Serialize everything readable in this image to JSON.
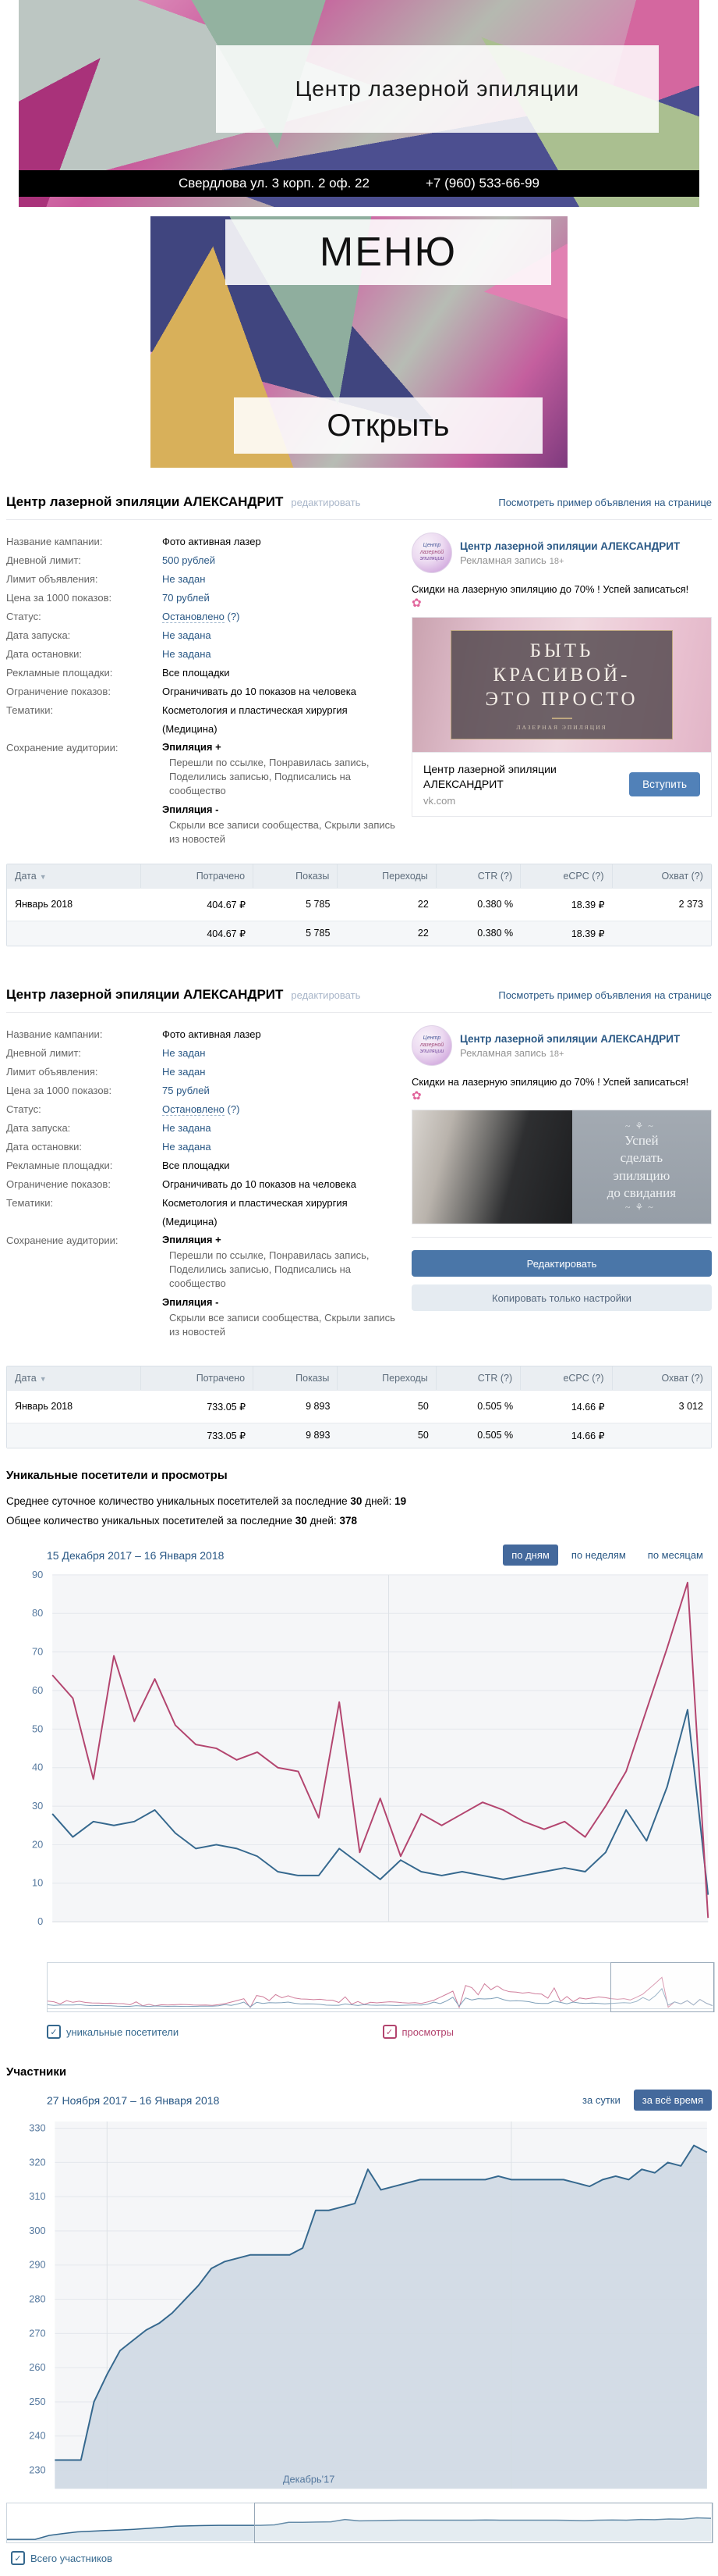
{
  "banner": {
    "title": "Центр лазерной эпиляции",
    "address": "Свердлова ул. 3 корп. 2 оф. 22",
    "phone": "+7 (960) 533-66-99"
  },
  "menu": {
    "title": "МЕНЮ",
    "open_label": "Открыть"
  },
  "campaigns": [
    {
      "title": "Центр лазерной эпиляции АЛЕКСАНДРИТ",
      "edit_label": "редактировать",
      "preview_link": "Посмотреть пример объявления на странице",
      "details": [
        {
          "label": "Название кампании:",
          "value": "Фото активная лазер",
          "style": "plain"
        },
        {
          "label": "Дневной лимит:",
          "value": "500 рублей",
          "style": "link"
        },
        {
          "label": "Лимит объявления:",
          "value": "Не задан",
          "style": "link"
        },
        {
          "label": "Цена за 1000 показов:",
          "value": "70 рублей",
          "style": "link"
        },
        {
          "label": "Статус:",
          "value": "Остановлено",
          "suffix": " (?)",
          "style": "status"
        },
        {
          "label": "Дата запуска:",
          "value": "Не задана",
          "style": "link"
        },
        {
          "label": "Дата остановки:",
          "value": "Не задана",
          "style": "link"
        },
        {
          "label": "Рекламные площадки:",
          "value": "Все площадки",
          "style": "plain"
        },
        {
          "label": "Ограничение показов:",
          "value": "Ограничивать до 10 показов на человека",
          "style": "plain"
        },
        {
          "label": "Тематики:",
          "value": "Косметология и пластическая хирургия (Медицина)",
          "style": "plain",
          "wrap": true
        }
      ],
      "audience": {
        "label": "Сохранение аудитории:",
        "groups": [
          {
            "name": "Эпиляция +",
            "desc": "Перешли по ссылке, Понравилась запись, Поделились записью, Подписались на сообщество"
          },
          {
            "name": "Эпиляция -",
            "desc": "Скрыли все записи сообщества, Скрыли запись из новостей"
          }
        ]
      },
      "ad": {
        "avatar": [
          "Центр",
          "лазерной",
          "эпиляции"
        ],
        "community": "Центр лазерной эпиляции АЛЕКСАНДРИТ",
        "post_type": "Рекламная запись",
        "age": "18+",
        "text": "Скидки на лазерную эпиляцию до 70% ! Успей записаться!",
        "flower": "✿",
        "image_lines": [
          "БЫТЬ",
          "КРАСИВОЙ-",
          "ЭТО ПРОСТО"
        ],
        "image_sub": "ЛАЗЕРНАЯ ЭПИЛЯЦИЯ",
        "card_title": "Центр лазерной эпиляции АЛЕКСАНДРИТ",
        "card_domain": "vk.com",
        "join_label": "Вступить"
      },
      "stats": {
        "headers": [
          "Дата",
          "Потрачено",
          "Показы",
          "Переходы",
          "CTR (?)",
          "eCPC (?)",
          "Охват (?)"
        ],
        "rows": [
          [
            "Январь 2018",
            "404.67 ₽",
            "5 785",
            "22",
            "0.380 %",
            "18.39 ₽",
            "2 373"
          ]
        ],
        "total": [
          "",
          "404.67 ₽",
          "5 785",
          "22",
          "0.380 %",
          "18.39 ₽",
          ""
        ]
      }
    },
    {
      "title": "Центр лазерной эпиляции АЛЕКСАНДРИТ",
      "edit_label": "редактировать",
      "preview_link": "Посмотреть пример объявления на странице",
      "details": [
        {
          "label": "Название кампании:",
          "value": "Фото активная лазер",
          "style": "plain"
        },
        {
          "label": "Дневной лимит:",
          "value": "Не задан",
          "style": "link"
        },
        {
          "label": "Лимит объявления:",
          "value": "Не задан",
          "style": "link"
        },
        {
          "label": "Цена за 1000 показов:",
          "value": "75 рублей",
          "style": "link"
        },
        {
          "label": "Статус:",
          "value": "Остановлено",
          "suffix": " (?)",
          "style": "status"
        },
        {
          "label": "Дата запуска:",
          "value": "Не задана",
          "style": "link"
        },
        {
          "label": "Дата остановки:",
          "value": "Не задана",
          "style": "link"
        },
        {
          "label": "Рекламные площадки:",
          "value": "Все площадки",
          "style": "plain"
        },
        {
          "label": "Ограничение показов:",
          "value": "Ограничивать до 10 показов на человека",
          "style": "plain"
        },
        {
          "label": "Тематики:",
          "value": "Косметология и пластическая хирургия (Медицина)",
          "style": "plain",
          "wrap": true
        }
      ],
      "audience": {
        "label": "Сохранение аудитории:",
        "groups": [
          {
            "name": "Эпиляция +",
            "desc": "Перешли по ссылке, Понравилась запись, Поделились записью, Подписались на сообщество"
          },
          {
            "name": "Эпиляция -",
            "desc": "Скрыли все записи сообщества, Скрыли запись из новостей"
          }
        ]
      },
      "ad": {
        "avatar": [
          "Центр",
          "лазерной",
          "эпиляции"
        ],
        "community": "Центр лазерной эпиляции АЛЕКСАНДРИТ",
        "post_type": "Рекламная запись",
        "age": "18+",
        "text": "Скидки на лазерную эпиляцию до 70% ! Успей записаться!",
        "flower": "✿",
        "image_lines": [
          "Успей",
          "сделать",
          "эпиляцию",
          "до свидания"
        ],
        "buttons": [
          "Редактировать",
          "Копировать только настройки"
        ]
      },
      "stats": {
        "headers": [
          "Дата",
          "Потрачено",
          "Показы",
          "Переходы",
          "CTR (?)",
          "eCPC (?)",
          "Охват (?)"
        ],
        "rows": [
          [
            "Январь 2018",
            "733.05 ₽",
            "9 893",
            "50",
            "0.505 %",
            "14.66 ₽",
            "3 012"
          ]
        ],
        "total": [
          "",
          "733.05 ₽",
          "9 893",
          "50",
          "0.505 %",
          "14.66 ₽",
          ""
        ]
      }
    }
  ],
  "visitors": {
    "heading": "Уникальные посетители и просмотры",
    "avg": {
      "prefix": "Среднее суточное количество уникальных посетителей за последние ",
      "days": "30",
      "mid": " дней: ",
      "value": "19"
    },
    "total": {
      "prefix": "Общее количество уникальных посетителей за последние ",
      "days": "30",
      "mid": " дней: ",
      "value": "378"
    },
    "date_range": "15 Декабря 2017 – 16 Января 2018",
    "tabs": {
      "items": [
        "по дням",
        "по неделям",
        "по месяцам"
      ],
      "active": 0
    },
    "legend": [
      {
        "label": "уникальные посетители",
        "color": "#35688e"
      },
      {
        "label": "просмотры",
        "color": "#b3456f"
      }
    ]
  },
  "members": {
    "heading": "Участники",
    "date_range": "27 Ноября 2017 – 16 Января 2018",
    "tabs": {
      "items": [
        "за сутки",
        "за всё время"
      ],
      "active": 1
    },
    "legend": [
      {
        "label": "Всего участников",
        "color": "#35688e"
      }
    ]
  },
  "chart_data": [
    {
      "type": "line",
      "title": "Уникальные посетители и просмотры",
      "x_range": "15 Декабря 2017 – 16 Января 2018",
      "xlabel": "",
      "ylabel": "",
      "ylim": [
        0,
        90
      ],
      "ytick_step": 10,
      "grid": true,
      "legend_position": "bottom",
      "series": [
        {
          "name": "уникальные посетители",
          "color": "#35688e",
          "values": [
            28,
            22,
            26,
            25,
            26,
            29,
            23,
            19,
            20,
            19,
            17,
            13,
            12,
            12,
            19,
            15,
            11,
            16,
            13,
            12,
            13,
            12,
            11,
            12,
            13,
            14,
            13,
            18,
            29,
            21,
            35,
            55,
            7
          ]
        },
        {
          "name": "просмотры",
          "color": "#b3456f",
          "values": [
            64,
            58,
            37,
            69,
            52,
            63,
            51,
            46,
            45,
            42,
            44,
            40,
            39,
            27,
            57,
            18,
            32,
            17,
            28,
            25,
            28,
            31,
            29,
            26,
            24,
            26,
            22,
            30,
            39,
            55,
            71,
            88,
            1
          ]
        }
      ]
    },
    {
      "type": "area",
      "title": "Участники",
      "x_range": "27 Ноября 2017 – 16 Января 2018",
      "xlabel": "Декабрь'17",
      "ylabel": "",
      "ylim": [
        230,
        330
      ],
      "ytick_step": 10,
      "grid": true,
      "series": [
        {
          "name": "Всего участников",
          "color": "#35688e",
          "fill": "#cfd9e3",
          "values": [
            233,
            233,
            233,
            250,
            258,
            265,
            268,
            271,
            273,
            276,
            280,
            284,
            289,
            291,
            292,
            293,
            293,
            293,
            293,
            295,
            306,
            306,
            307,
            308,
            318,
            312,
            313,
            314,
            315,
            315,
            315,
            315,
            315,
            315,
            316,
            315,
            315,
            315,
            315,
            315,
            314,
            313,
            315,
            316,
            315,
            318,
            317,
            320,
            319,
            325,
            323
          ]
        }
      ]
    }
  ]
}
